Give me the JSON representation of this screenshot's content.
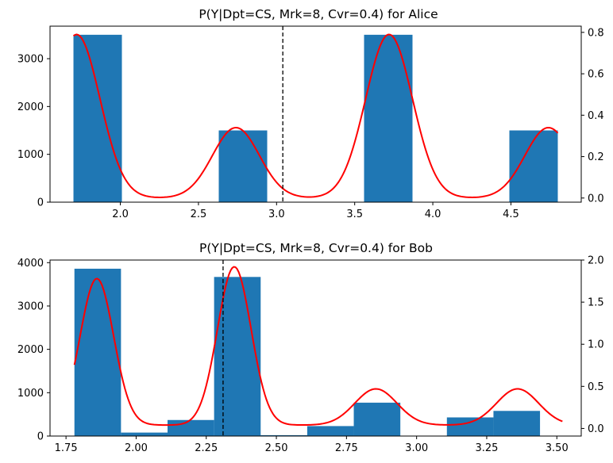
{
  "chart_data": [
    {
      "type": "bar",
      "title": "P(Y|Dpt=CS, Mrk=8, Cvr=0.4) for Alice",
      "xlim": [
        1.55,
        4.95
      ],
      "ylim": [
        0,
        3680
      ],
      "y2lim": [
        -0.02,
        0.83
      ],
      "xticks": [
        "2.0",
        "2.5",
        "3.0",
        "3.5",
        "4.0",
        "4.5"
      ],
      "xtick_values": [
        2.0,
        2.5,
        3.0,
        3.5,
        4.0,
        4.5
      ],
      "yticks": [
        "0",
        "1000",
        "2000",
        "3000"
      ],
      "ytick_values": [
        0,
        1000,
        2000,
        3000
      ],
      "y2ticks": [
        "0.0",
        "0.2",
        "0.4",
        "0.6",
        "0.8"
      ],
      "y2tick_values": [
        0.0,
        0.2,
        0.4,
        0.6,
        0.8
      ],
      "bars": [
        {
          "x0": 1.7,
          "x1": 2.01,
          "value": 3500
        },
        {
          "x0": 2.01,
          "x1": 2.32,
          "value": 0
        },
        {
          "x0": 2.32,
          "x1": 2.63,
          "value": 0
        },
        {
          "x0": 2.63,
          "x1": 2.94,
          "value": 1500
        },
        {
          "x0": 2.94,
          "x1": 3.25,
          "value": 0
        },
        {
          "x0": 3.25,
          "x1": 3.56,
          "value": 0
        },
        {
          "x0": 3.56,
          "x1": 3.87,
          "value": 3500
        },
        {
          "x0": 3.87,
          "x1": 4.18,
          "value": 0
        },
        {
          "x0": 4.18,
          "x1": 4.49,
          "value": 0
        },
        {
          "x0": 4.49,
          "x1": 4.8,
          "value": 1500
        }
      ],
      "vline": 3.04,
      "density": {
        "baseline": 0.0,
        "peaks": [
          {
            "mu": 1.72,
            "sigma": 0.15,
            "amp": 0.79
          },
          {
            "mu": 2.74,
            "sigma": 0.15,
            "amp": 0.34
          },
          {
            "mu": 3.72,
            "sigma": 0.15,
            "amp": 0.79
          },
          {
            "mu": 4.74,
            "sigma": 0.15,
            "amp": 0.34
          }
        ],
        "x_range": [
          1.7,
          4.8
        ]
      },
      "colors": {
        "bar": "#1f77b4",
        "line": "#ff0000",
        "vline": "#000000"
      }
    },
    {
      "type": "bar",
      "title": "P(Y|Dpt=CS, Mrk=8, Cvr=0.4) for Bob",
      "xlim": [
        1.693,
        3.587
      ],
      "ylim": [
        0,
        4060
      ],
      "y2lim": [
        -0.09,
        2.0
      ],
      "xticks": [
        "1.75",
        "2.00",
        "2.25",
        "2.50",
        "2.75",
        "3.00",
        "3.25",
        "3.50"
      ],
      "xtick_values": [
        1.75,
        2.0,
        2.25,
        2.5,
        2.75,
        3.0,
        3.25,
        3.5
      ],
      "yticks": [
        "0",
        "1000",
        "2000",
        "3000",
        "4000"
      ],
      "ytick_values": [
        0,
        1000,
        2000,
        3000,
        4000
      ],
      "y2ticks": [
        "0.0",
        "0.5",
        "1.0",
        "1.5",
        "2.0"
      ],
      "y2tick_values": [
        0.0,
        0.5,
        1.0,
        1.5,
        2.0
      ],
      "bars": [
        {
          "x0": 1.78,
          "x1": 1.946,
          "value": 3860
        },
        {
          "x0": 1.946,
          "x1": 2.112,
          "value": 80
        },
        {
          "x0": 2.112,
          "x1": 2.278,
          "value": 370
        },
        {
          "x0": 2.278,
          "x1": 2.444,
          "value": 3670
        },
        {
          "x0": 2.444,
          "x1": 2.61,
          "value": 20
        },
        {
          "x0": 2.61,
          "x1": 2.776,
          "value": 230
        },
        {
          "x0": 2.776,
          "x1": 2.942,
          "value": 770
        },
        {
          "x0": 2.942,
          "x1": 3.108,
          "value": 0
        },
        {
          "x0": 3.108,
          "x1": 3.274,
          "value": 430
        },
        {
          "x0": 3.274,
          "x1": 3.44,
          "value": 580
        }
      ],
      "vline": 2.31,
      "density": {
        "baseline": 0.04,
        "peaks": [
          {
            "mu": 1.86,
            "sigma": 0.06,
            "amp": 1.74
          },
          {
            "mu": 2.35,
            "sigma": 0.06,
            "amp": 1.88
          },
          {
            "mu": 2.855,
            "sigma": 0.075,
            "amp": 0.43
          },
          {
            "mu": 3.36,
            "sigma": 0.075,
            "amp": 0.43
          }
        ],
        "x_range": [
          1.78,
          3.52
        ]
      },
      "colors": {
        "bar": "#1f77b4",
        "line": "#ff0000",
        "vline": "#000000"
      }
    }
  ]
}
